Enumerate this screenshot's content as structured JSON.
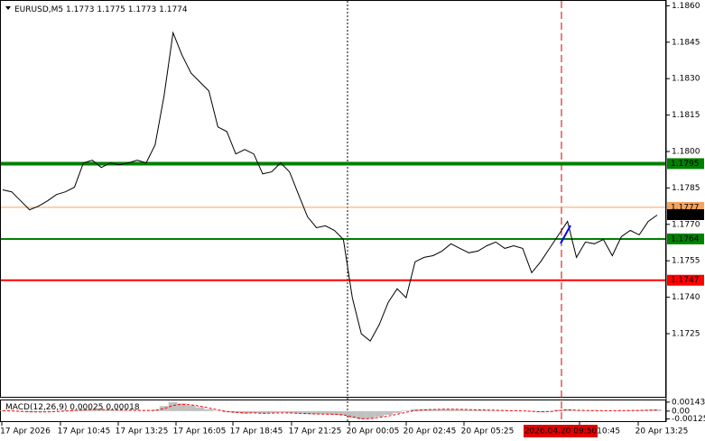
{
  "chart_data": {
    "type": "line",
    "symbol": "EURUSD,M5",
    "ohlc": [
      1.1773,
      1.1775,
      1.1773,
      1.1774
    ],
    "ylim": [
      1.1699,
      1.1862
    ],
    "yticks": [
      {
        "value": 1.186,
        "label": "1.1860"
      },
      1.1845,
      {
        "value": 1.183,
        "label": "1.1830"
      },
      1.1815,
      {
        "value": 1.18,
        "label": "1.1800"
      },
      1.1785,
      {
        "value": 1.177,
        "label": "1.1770"
      },
      1.1755,
      {
        "value": 1.174,
        "label": "1.1740"
      },
      1.1725
    ],
    "series": [
      {
        "name": "EURUSD",
        "color": "#000000",
        "values": [
          1.17842,
          1.17834,
          1.17797,
          1.1776,
          1.17775,
          1.17797,
          1.17823,
          1.17834,
          1.17853,
          1.17953,
          1.17964,
          1.17934,
          1.17953,
          1.17945,
          1.17953,
          1.17964,
          1.17953,
          1.18027,
          1.1823,
          1.18489,
          1.18397,
          1.18323,
          1.18286,
          1.18249,
          1.18101,
          1.18082,
          1.1799,
          1.18008,
          1.1799,
          1.17908,
          1.17916,
          1.17953,
          1.17916,
          1.17823,
          1.17731,
          1.17686,
          1.17694,
          1.17675,
          1.17638,
          1.17398,
          1.17249,
          1.1722,
          1.17287,
          1.17379,
          1.17435,
          1.17398,
          1.17546,
          1.17564,
          1.17571,
          1.1759,
          1.1762,
          1.17601,
          1.17583,
          1.1759,
          1.17612,
          1.17627,
          1.17601,
          1.17612,
          1.17601,
          1.17501,
          1.17546,
          1.17601,
          1.17657,
          1.17712,
          1.17564,
          1.17627,
          1.1762,
          1.17638,
          1.17571,
          1.17649,
          1.17675,
          1.17657,
          1.17712,
          1.17738
        ]
      }
    ],
    "levels": [
      {
        "value": 1.1795,
        "color": "#008000",
        "width": 4
      },
      {
        "value": 1.1777,
        "color": "#f4a460",
        "width": 1
      },
      {
        "value": 1.1764,
        "color": "#008000",
        "width": 2
      },
      {
        "value": 1.1747,
        "color": "#ff0000",
        "width": 2
      }
    ],
    "last_price": 1.1774,
    "time_labels": [
      "17 Apr 2026",
      "17 Apr 10:45",
      "17 Apr 13:25",
      "17 Apr 16:05",
      "17 Apr 18:45",
      "17 Apr 21:25",
      "20 Apr 00:05",
      "20 Apr 02:45",
      "20 Apr 05:25",
      "pr 10:45",
      "20 Apr 13:25"
    ],
    "cursor_time": "2026.04.20 09:50",
    "macd": {
      "title": "MACD(12,26,9)",
      "main": 0.00025,
      "signal_value": 0.00018,
      "ylim": [
        -0.0016,
        0.0017
      ],
      "yticks": [
        0.00143,
        {
          "value": 0,
          "label": "0.00"
        },
        -0.00125
      ],
      "histogram": {
        "name": "MACD",
        "color": "#c0c0c0",
        "values": [
          0.0001,
          5e-05,
          -0.0001,
          -0.0002,
          -0.00015,
          -0.0001,
          5e-05,
          0.0001,
          0.0002,
          0.0003,
          0.0003,
          0.00025,
          0.0002,
          0.00015,
          0.0001,
          0.0001,
          5e-05,
          0.0002,
          0.0008,
          0.0014,
          0.0012,
          0.0009,
          0.0006,
          0.0003,
          5e-05,
          -0.0002,
          -0.0003,
          -0.0004,
          -0.0003,
          -0.0004,
          -0.0003,
          -0.0002,
          -0.0003,
          -0.0004,
          -0.0005,
          -0.0005,
          -0.0005,
          -0.0006,
          -0.0007,
          -0.0011,
          -0.0013,
          -0.0012,
          -0.0009,
          -0.0006,
          -0.0003,
          0.0001,
          0.0003,
          0.0003,
          0.0003,
          0.0003,
          0.0003,
          0.00025,
          0.0002,
          0.0002,
          0.00015,
          0.0001,
          0.0001,
          5e-05,
          0,
          -0.0001,
          -0.0002,
          -0.0001,
          0.0002,
          0.0003,
          0.0001,
          5e-05,
          0.0001,
          5e-05,
          5e-05,
          0.0001,
          0.0001,
          0.00015,
          0.0002,
          0.00025
        ]
      },
      "signal": {
        "name": "Signal",
        "color": "#ff0000",
        "values": [
          5e-05,
          3e-05,
          -3e-05,
          -0.0001,
          -0.00013,
          -0.00012,
          -7e-05,
          0,
          0.0001,
          0.0002,
          0.00025,
          0.00025,
          0.00022,
          0.00019,
          0.00015,
          0.00012,
          0.0001,
          0.00012,
          0.0004,
          0.0009,
          0.0011,
          0.001,
          0.0008,
          0.0005,
          0.0002,
          -5e-05,
          -0.0002,
          -0.0003,
          -0.0003,
          -0.00035,
          -0.00033,
          -0.0003,
          -0.0003,
          -0.00035,
          -0.0004,
          -0.00045,
          -0.0005,
          -0.0005,
          -0.0006,
          -0.0009,
          -0.0012,
          -0.0012,
          -0.001,
          -0.0008,
          -0.0005,
          -0.0002,
          0.0001,
          0.0002,
          0.00025,
          0.0003,
          0.0003,
          0.00028,
          0.00024,
          0.0002,
          0.00018,
          0.00014,
          0.0001,
          7e-05,
          3e-05,
          -3e-05,
          -0.0001,
          -0.0001,
          0.0001,
          0.00022,
          0.00015,
          0.0001,
          8e-05,
          6e-05,
          6e-05,
          8e-05,
          9e-05,
          0.00011,
          0.00015,
          0.00018
        ]
      }
    }
  }
}
